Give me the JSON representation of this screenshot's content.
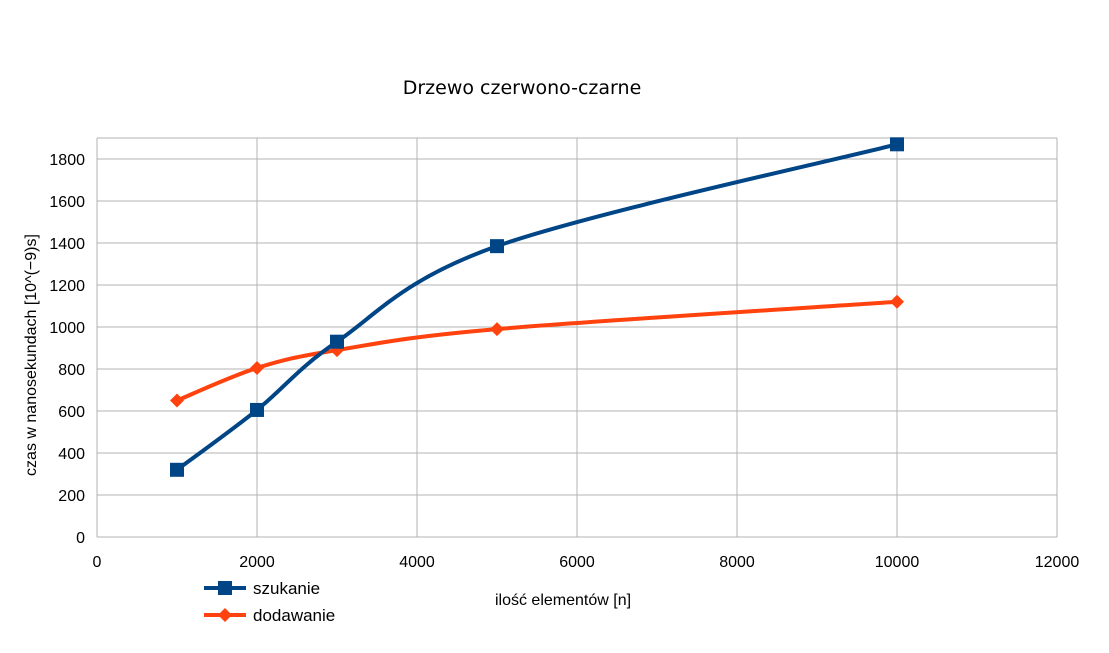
{
  "chart_data": {
    "type": "line",
    "title": "Drzewo czerwono-czarne",
    "xlabel": "ilość elementów [n]",
    "ylabel": "czas w nanosekundach [10^(−9)s]",
    "xlim": [
      0,
      12000
    ],
    "ylim": [
      0,
      1900
    ],
    "xticks": [
      0,
      2000,
      4000,
      6000,
      8000,
      10000,
      12000
    ],
    "yticks": [
      0,
      200,
      400,
      600,
      800,
      1000,
      1200,
      1400,
      1600,
      1800
    ],
    "grid": true,
    "smooth": true,
    "legend_position": "bottom-left",
    "x": [
      1000,
      2000,
      3000,
      5000,
      10000
    ],
    "series": [
      {
        "name": "szukanie",
        "values": [
          320,
          605,
          930,
          1385,
          1870
        ],
        "color": "#004586",
        "marker": "square"
      },
      {
        "name": "dodawanie",
        "values": [
          650,
          805,
          890,
          990,
          1120
        ],
        "color": "#ff420e",
        "marker": "diamond"
      }
    ]
  }
}
